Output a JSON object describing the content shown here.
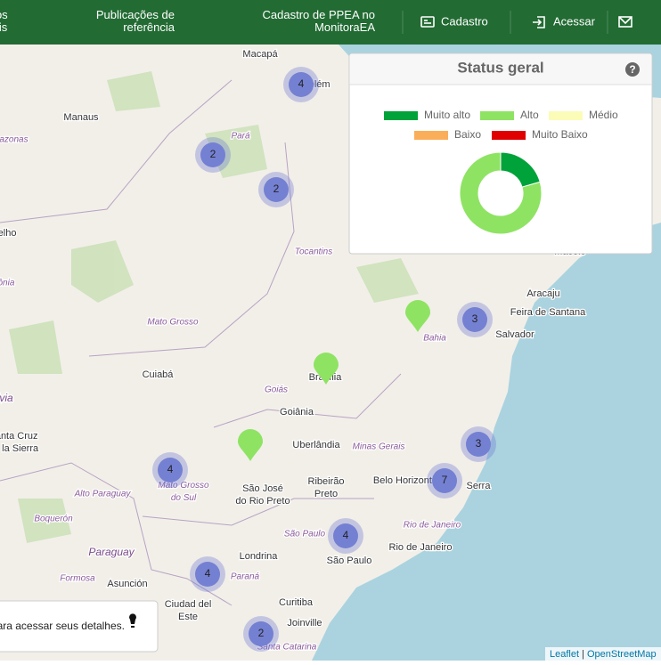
{
  "nav": {
    "items": [
      [
        "tos",
        "ais"
      ],
      [
        "Publicações de",
        "referência"
      ],
      [
        "Cadastro de PPEA no",
        "MonitoraEA"
      ],
      "Cadastro",
      "Acessar"
    ]
  },
  "map": {
    "labels": [
      "Macapá",
      "Belém",
      "Manaus",
      "Amazonas",
      "Pará",
      "Porto Velho",
      "Tocantins",
      "Rondônia",
      "Mato Grosso",
      "Cuiabá",
      "Goiás",
      "Brasília",
      "Goiânia",
      "Bolivia",
      [
        "Santa Cruz",
        "de la Sierra"
      ],
      "Uberlândia",
      "Minas Gerais",
      "Belo Horizonte",
      "Serra",
      [
        "Ribeirão",
        "Preto"
      ],
      [
        "São José",
        "do Rio Preto"
      ],
      [
        "Mato Grosso",
        "do Sul"
      ],
      "Alto Paraguay",
      "Boquerón",
      "Paraguay",
      "São Paulo",
      "Rio de Janeiro",
      "Rio de Janeiro",
      "São Paulo",
      "Londrina",
      "Formosa",
      "Asunción",
      "Paraná",
      [
        "Ciudad del",
        "Este"
      ],
      "Curitiba",
      "Joinville",
      "Santa Catarina",
      "Aracaju",
      "Feira de Santana",
      "Salvador",
      "Bahia",
      "Maceió"
    ],
    "clusters": [
      4,
      2,
      2,
      3,
      3,
      7,
      4,
      4,
      4,
      2
    ]
  },
  "panel": {
    "title": "Status geral",
    "help": "?"
  },
  "chart_data": {
    "type": "donut",
    "categories": [
      "Muito alto",
      "Alto",
      "Médio",
      "Baixo",
      "Muito Baixo"
    ],
    "values": [
      7,
      27,
      0,
      0,
      0
    ],
    "colors": [
      "#00a23a",
      "#8fe363",
      "#fbfcb7",
      "#fbae5a",
      "#e00000"
    ]
  },
  "hint": {
    "text": "ara acessar seus detalhes."
  },
  "attribution": {
    "leaflet": "Leaflet",
    "sep": "|",
    "osm": "OpenStreetMap"
  }
}
